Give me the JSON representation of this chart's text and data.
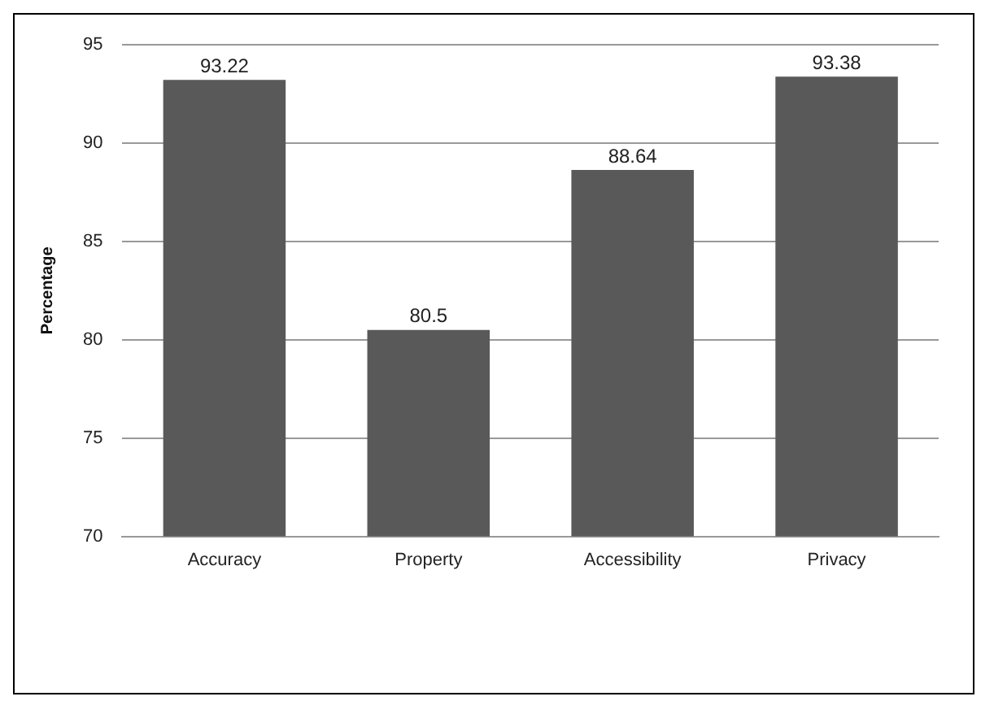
{
  "chart_data": {
    "type": "bar",
    "ylabel": "Percentage",
    "categories": [
      "Accuracy",
      "Property",
      "Accessibility",
      "Privacy"
    ],
    "values": [
      93.22,
      80.5,
      88.64,
      93.38
    ],
    "color": "#595959",
    "ylim": [
      70,
      95
    ],
    "yticks": [
      70,
      75,
      80,
      85,
      90,
      95
    ],
    "grid": "y",
    "data_labels": true,
    "legend": false
  }
}
